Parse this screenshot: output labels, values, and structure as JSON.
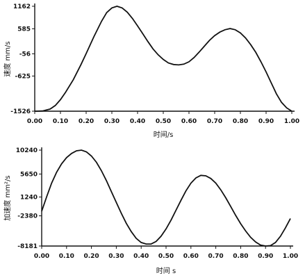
{
  "chart_data": [
    {
      "type": "line",
      "title": "",
      "xlabel": "时间/s",
      "ylabel": "速度 mm/s",
      "xlim": [
        0,
        1.0
      ],
      "ylim": [
        -1526,
        1162
      ],
      "x_ticks": [
        "0.00",
        "0.10",
        "0.20",
        "0.30",
        "0.40",
        "0.50",
        "0.60",
        "0.70",
        "0.80",
        "0.90",
        "1.00"
      ],
      "y_ticks": [
        "1162",
        "585",
        "-56",
        "-625",
        "-1526"
      ],
      "y_tick_values": [
        1162,
        585,
        -56,
        -625,
        -1526
      ],
      "series": [
        {
          "x": [
            0.0,
            0.03,
            0.06,
            0.08,
            0.1,
            0.12,
            0.15,
            0.18,
            0.2,
            0.23,
            0.26,
            0.28,
            0.3,
            0.32,
            0.34,
            0.36,
            0.38,
            0.4,
            0.42,
            0.44,
            0.46,
            0.48,
            0.5,
            0.52,
            0.54,
            0.56,
            0.58,
            0.6,
            0.62,
            0.64,
            0.66,
            0.68,
            0.7,
            0.72,
            0.74,
            0.76,
            0.78,
            0.8,
            0.82,
            0.84,
            0.86,
            0.88,
            0.9,
            0.92,
            0.94,
            0.96,
            0.98,
            1.0
          ],
          "y": [
            -1526,
            -1520,
            -1470,
            -1380,
            -1230,
            -1040,
            -720,
            -330,
            -50,
            380,
            780,
            1000,
            1120,
            1162,
            1120,
            1010,
            850,
            660,
            460,
            260,
            70,
            -80,
            -200,
            -290,
            -330,
            -340,
            -320,
            -260,
            -150,
            -10,
            140,
            290,
            410,
            500,
            560,
            590,
            560,
            480,
            350,
            180,
            -20,
            -260,
            -520,
            -800,
            -1080,
            -1300,
            -1440,
            -1526
          ]
        }
      ]
    },
    {
      "type": "line",
      "title": "",
      "xlabel": "时间 s",
      "ylabel": "加速度 mm²/s",
      "xlim": [
        0,
        1.0
      ],
      "ylim": [
        -8181,
        10240
      ],
      "x_ticks": [
        "0.00",
        "0.10",
        "0.20",
        "0.30",
        "0.40",
        "0.50",
        "0.60",
        "0.70",
        "0.80",
        "0.90",
        "1.00"
      ],
      "y_ticks": [
        "10240",
        "5650",
        "1240",
        "-2380",
        "-8181"
      ],
      "y_tick_values": [
        10240,
        5650,
        1240,
        -2380,
        -8181
      ],
      "series": [
        {
          "x": [
            0.0,
            0.02,
            0.04,
            0.06,
            0.08,
            0.1,
            0.12,
            0.14,
            0.16,
            0.18,
            0.2,
            0.22,
            0.24,
            0.26,
            0.28,
            0.3,
            0.32,
            0.34,
            0.36,
            0.38,
            0.4,
            0.42,
            0.44,
            0.46,
            0.48,
            0.5,
            0.52,
            0.54,
            0.56,
            0.58,
            0.6,
            0.62,
            0.64,
            0.66,
            0.68,
            0.7,
            0.72,
            0.74,
            0.76,
            0.78,
            0.8,
            0.82,
            0.84,
            0.86,
            0.88,
            0.9,
            0.92,
            0.94,
            0.96,
            0.98,
            1.0
          ],
          "y": [
            -1500,
            1300,
            3900,
            6000,
            7600,
            8800,
            9600,
            10100,
            10240,
            9900,
            9100,
            7900,
            6300,
            4400,
            2300,
            200,
            -1900,
            -3800,
            -5400,
            -6700,
            -7500,
            -7800,
            -7800,
            -7300,
            -6300,
            -4900,
            -3200,
            -1300,
            600,
            2400,
            3900,
            4900,
            5400,
            5300,
            4800,
            3900,
            2600,
            1100,
            -600,
            -2300,
            -3900,
            -5300,
            -6500,
            -7400,
            -8000,
            -8181,
            -8100,
            -7500,
            -6300,
            -4700,
            -2900
          ]
        }
      ]
    }
  ]
}
